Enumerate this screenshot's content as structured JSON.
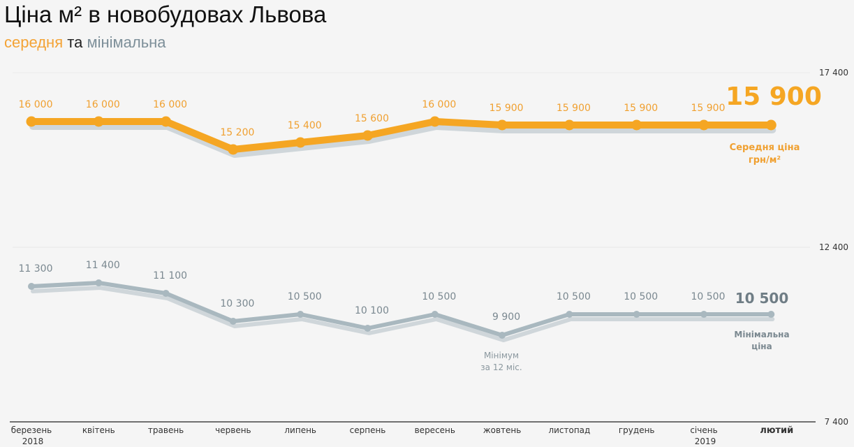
{
  "header": {
    "title": "Ціна м² в новобудовах Львова",
    "subtitle_avg": "середня",
    "subtitle_and": "та",
    "subtitle_min": "мінімальна"
  },
  "colors": {
    "average": "#f5a623",
    "average_label": "#f0a030",
    "minimum": "#a9b8bf",
    "minimum_label": "#7a8890",
    "shadow": "#cfd6da",
    "background": "#f5f5f5"
  },
  "y_axis": {
    "ticks": [
      {
        "value": 17400,
        "label": "17 400"
      },
      {
        "value": 12400,
        "label": "12 400"
      },
      {
        "value": 7400,
        "label": "7 400"
      }
    ]
  },
  "callouts": {
    "average_current": "15 900",
    "average_caption_line1": "Середня ціна",
    "average_caption_line2": "грн/м²",
    "minimum_current": "10 500",
    "minimum_caption_line1": "Мінімальна",
    "minimum_caption_line2": "ціна",
    "min_note_line1": "Мінімум",
    "min_note_line2": "за 12 міс."
  },
  "chart_data": {
    "type": "line",
    "title": "Ціна м² в новобудовах Львова",
    "subtitle": "середня та мінімальна",
    "xlabel": "",
    "ylabel": "грн/м²",
    "ylim": [
      7400,
      17400
    ],
    "grid": true,
    "categories": [
      "березень 2018",
      "квітень",
      "травень",
      "червень",
      "липень",
      "серпень",
      "вересень",
      "жовтень",
      "листопад",
      "грудень",
      "січень 2019",
      "лютий"
    ],
    "x_labels": [
      {
        "line1": "березень",
        "line2": "2018"
      },
      {
        "line1": "квітень",
        "line2": ""
      },
      {
        "line1": "травень",
        "line2": ""
      },
      {
        "line1": "червень",
        "line2": ""
      },
      {
        "line1": "липень",
        "line2": ""
      },
      {
        "line1": "серпень",
        "line2": ""
      },
      {
        "line1": "вересень",
        "line2": ""
      },
      {
        "line1": "жовтень",
        "line2": ""
      },
      {
        "line1": "листопад",
        "line2": ""
      },
      {
        "line1": "грудень",
        "line2": ""
      },
      {
        "line1": "січень",
        "line2": "2019"
      },
      {
        "line1": "лютий",
        "line2": ""
      }
    ],
    "series": [
      {
        "name": "Середня ціна",
        "values": [
          16000,
          16000,
          16000,
          15200,
          15400,
          15600,
          16000,
          15900,
          15900,
          15900,
          15900,
          15900
        ],
        "labels": [
          "16 000",
          "16 000",
          "16 000",
          "15 200",
          "15 400",
          "15 600",
          "16 000",
          "15 900",
          "15 900",
          "15 900",
          "15 900",
          "15 900"
        ]
      },
      {
        "name": "Мінімальна ціна",
        "values": [
          11300,
          11400,
          11100,
          10300,
          10500,
          10100,
          10500,
          9900,
          10500,
          10500,
          10500,
          10500
        ],
        "labels": [
          "11 300",
          "11 400",
          "11 100",
          "10 300",
          "10 500",
          "10 100",
          "10 500",
          "9 900",
          "10 500",
          "10 500",
          "10 500",
          "10 500"
        ]
      }
    ],
    "annotations": [
      "Мінімум за 12 міс. (жовтень, 9 900)",
      "Середня ціна грн/м² 15 900",
      "Мінімальна ціна 10 500"
    ],
    "legend_position": "inline-right"
  }
}
